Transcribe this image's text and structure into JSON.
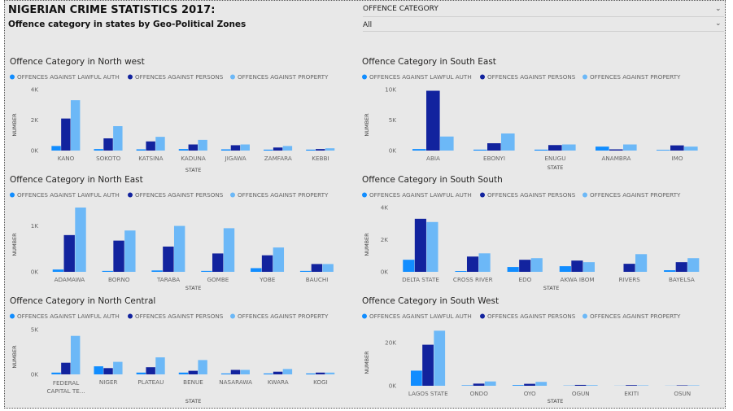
{
  "header": {
    "title": "NIGERIAN CRIME STATISTICS 2017:",
    "subtitle": "Offence category in states by Geo-Political Zones"
  },
  "slicer": {
    "label": "OFFENCE CATEGORY",
    "value": "All",
    "icon": "chevron-down-icon"
  },
  "colors": {
    "lawful_auth": "#118DFF",
    "persons": "#12239E",
    "property": "#6CB8F7",
    "background": "#E8E8E8"
  },
  "legend_labels": [
    "OFFENCES AGAINST LAWFUL AUTH",
    "OFFENCES AGAINST PERSONS",
    "OFFENCES AGAINST PROPERTY"
  ],
  "chart_data": [
    {
      "type": "bar",
      "title": "Offence Category in North west",
      "xlabel": "STATE",
      "ylabel": "NUMBER",
      "categories": [
        "KANO",
        "SOKOTO",
        "KATSINA",
        "KADUNA",
        "JIGAWA",
        "ZAMFARA",
        "KEBBI"
      ],
      "yticks": [
        0,
        2000,
        4000
      ],
      "ytick_labels": [
        "0K",
        "2K",
        "4K"
      ],
      "ylim": [
        0,
        4000
      ],
      "series": [
        {
          "name": "OFFENCES AGAINST LAWFUL AUTH",
          "values": [
            300,
            100,
            80,
            100,
            80,
            60,
            60
          ]
        },
        {
          "name": "OFFENCES AGAINST PERSONS",
          "values": [
            2100,
            800,
            600,
            400,
            350,
            200,
            100
          ]
        },
        {
          "name": "OFFENCES AGAINST PROPERTY",
          "values": [
            3300,
            1600,
            900,
            700,
            400,
            300,
            150
          ]
        }
      ]
    },
    {
      "type": "bar",
      "title": "Offence Category in South East",
      "xlabel": "STATE",
      "ylabel": "NUMBER",
      "categories": [
        "ABIA",
        "EBONYI",
        "ENUGU",
        "ANAMBRA",
        "IMO"
      ],
      "yticks": [
        0,
        5000,
        10000
      ],
      "ytick_labels": [
        "0K",
        "5K",
        "10K"
      ],
      "ylim": [
        0,
        10000
      ],
      "series": [
        {
          "name": "OFFENCES AGAINST LAWFUL AUTH",
          "values": [
            250,
            150,
            150,
            650,
            100
          ]
        },
        {
          "name": "OFFENCES AGAINST PERSONS",
          "values": [
            9800,
            1200,
            900,
            200,
            850
          ]
        },
        {
          "name": "OFFENCES AGAINST PROPERTY",
          "values": [
            2300,
            2800,
            1000,
            1000,
            650
          ]
        }
      ]
    },
    {
      "type": "bar",
      "title": "Offence Category in North East",
      "xlabel": "STATE",
      "ylabel": "NUMBER",
      "categories": [
        "ADAMAWA",
        "BORNO",
        "TARABA",
        "GOMBE",
        "YOBE",
        "BAUCHI"
      ],
      "yticks": [
        0,
        1000
      ],
      "ytick_labels": [
        "0K",
        "1K"
      ],
      "ylim": [
        0,
        1400
      ],
      "series": [
        {
          "name": "OFFENCES AGAINST LAWFUL AUTH",
          "values": [
            50,
            20,
            30,
            20,
            80,
            20
          ]
        },
        {
          "name": "OFFENCES AGAINST PERSONS",
          "values": [
            800,
            680,
            550,
            400,
            360,
            170
          ]
        },
        {
          "name": "OFFENCES AGAINST PROPERTY",
          "values": [
            1400,
            900,
            1000,
            950,
            530,
            170
          ]
        }
      ]
    },
    {
      "type": "bar",
      "title": "Offence Category in South South",
      "xlabel": "STATE",
      "ylabel": "NUMBER",
      "categories": [
        "DELTA STATE",
        "CROSS RIVER",
        "EDO",
        "AKWA IBOM",
        "RIVERS",
        "BAYELSA"
      ],
      "yticks": [
        0,
        2000,
        4000
      ],
      "ytick_labels": [
        "0K",
        "2K",
        "4K"
      ],
      "ylim": [
        0,
        4000
      ],
      "series": [
        {
          "name": "OFFENCES AGAINST LAWFUL AUTH",
          "values": [
            750,
            50,
            300,
            350,
            0,
            100
          ]
        },
        {
          "name": "OFFENCES AGAINST PERSONS",
          "values": [
            3300,
            950,
            750,
            700,
            500,
            600
          ]
        },
        {
          "name": "OFFENCES AGAINST PROPERTY",
          "values": [
            3100,
            1150,
            850,
            600,
            1100,
            850
          ]
        }
      ]
    },
    {
      "type": "bar",
      "title": "Offence Category in North Central",
      "xlabel": "STATE",
      "ylabel": "NUMBER",
      "categories": [
        "FEDERAL CAPITAL TE...",
        "NIGER",
        "PLATEAU",
        "BENUE",
        "NASARAWA",
        "KWARA",
        "KOGI"
      ],
      "yticks": [
        0,
        5000
      ],
      "ytick_labels": [
        "0K",
        "5K"
      ],
      "ylim": [
        0,
        5000
      ],
      "series": [
        {
          "name": "OFFENCES AGAINST LAWFUL AUTH",
          "values": [
            200,
            900,
            200,
            200,
            100,
            100,
            100
          ]
        },
        {
          "name": "OFFENCES AGAINST PERSONS",
          "values": [
            1300,
            700,
            800,
            400,
            500,
            300,
            200
          ]
        },
        {
          "name": "OFFENCES AGAINST PROPERTY",
          "values": [
            4300,
            1400,
            1900,
            1600,
            500,
            600,
            200
          ]
        }
      ]
    },
    {
      "type": "bar",
      "title": "Offence Category in South West",
      "xlabel": "STATE",
      "ylabel": "NUMBER",
      "categories": [
        "LAGOS STATE",
        "ONDO",
        "OYO",
        "OGUN",
        "EKITI",
        "OSUN"
      ],
      "yticks": [
        0,
        20000
      ],
      "ytick_labels": [
        "0K",
        "20K"
      ],
      "ylim": [
        0,
        26000
      ],
      "series": [
        {
          "name": "OFFENCES AGAINST LAWFUL AUTH",
          "values": [
            7000,
            200,
            300,
            100,
            50,
            50
          ]
        },
        {
          "name": "OFFENCES AGAINST PERSONS",
          "values": [
            19000,
            1000,
            900,
            400,
            300,
            200
          ]
        },
        {
          "name": "OFFENCES AGAINST PROPERTY",
          "values": [
            25500,
            2000,
            1800,
            300,
            200,
            200
          ]
        }
      ]
    }
  ]
}
